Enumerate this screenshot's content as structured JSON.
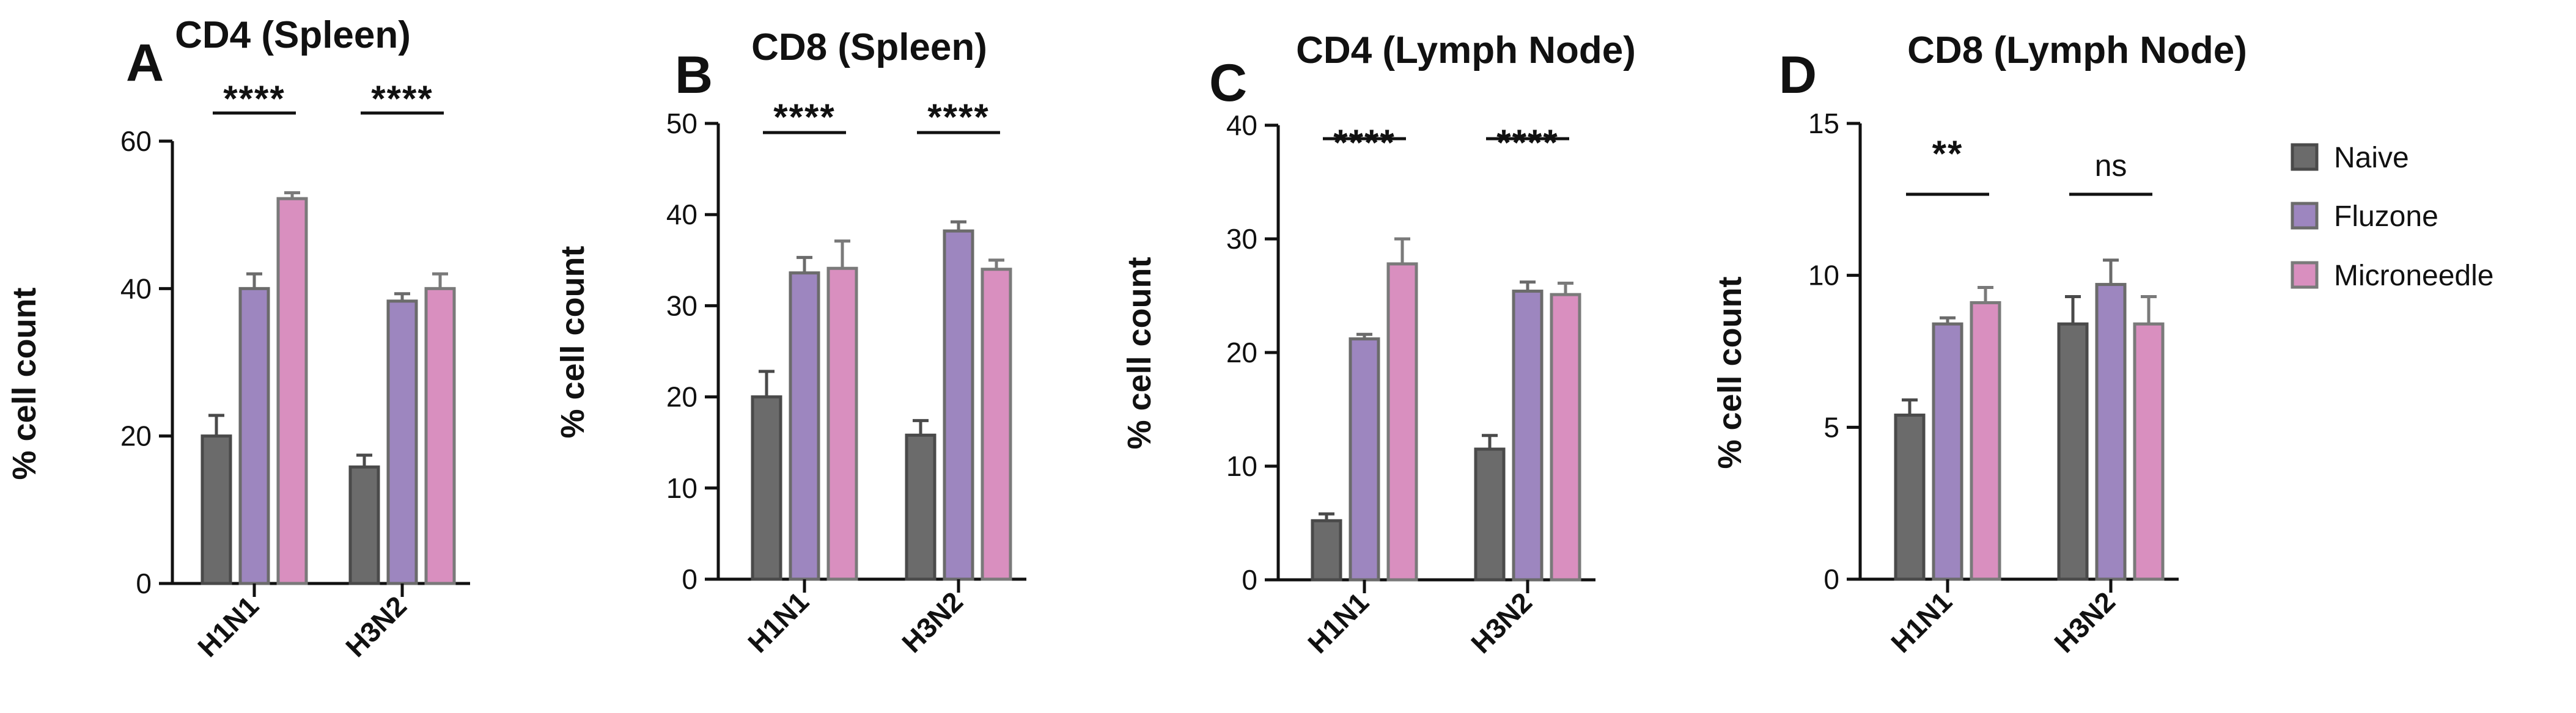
{
  "legend": [
    {
      "name": "Naive",
      "fill": "#6b6b6b",
      "stroke": "#4a4a4a"
    },
    {
      "name": "Fluzone",
      "fill": "#9d86bf",
      "stroke": "#6b6b6b"
    },
    {
      "name": "Microneedle",
      "fill": "#d98fbf",
      "stroke": "#7a7a7a"
    }
  ],
  "chart_data": [
    {
      "type": "bar",
      "panel": "A",
      "title": "CD4 (Spleen)",
      "ylabel": "% cell count",
      "ylim": [
        0,
        60
      ],
      "yticks": [
        0,
        20,
        40,
        60
      ],
      "categories": [
        "H1N1",
        "H3N2"
      ],
      "series": [
        {
          "name": "Naive",
          "values": [
            20,
            15.8
          ],
          "errors": [
            2.8,
            1.6
          ]
        },
        {
          "name": "Fluzone",
          "values": [
            40,
            38.3
          ],
          "errors": [
            2,
            1
          ]
        },
        {
          "name": "Microneedle",
          "values": [
            52.2,
            40
          ],
          "errors": [
            0.8,
            2
          ]
        }
      ],
      "significance": [
        "****",
        "****"
      ]
    },
    {
      "type": "bar",
      "panel": "B",
      "title": "CD8 (Spleen)",
      "ylabel": "% cell count",
      "ylim": [
        0,
        50
      ],
      "yticks": [
        0,
        10,
        20,
        30,
        40,
        50
      ],
      "categories": [
        "H1N1",
        "H3N2"
      ],
      "series": [
        {
          "name": "Naive",
          "values": [
            20,
            15.8
          ],
          "errors": [
            2.8,
            1.6
          ]
        },
        {
          "name": "Fluzone",
          "values": [
            33.6,
            38.2
          ],
          "errors": [
            1.7,
            1
          ]
        },
        {
          "name": "Microneedle",
          "values": [
            34.1,
            34
          ],
          "errors": [
            3,
            1
          ]
        }
      ],
      "significance": [
        "****",
        "****"
      ]
    },
    {
      "type": "bar",
      "panel": "C",
      "title": "CD4 (Lymph Node)",
      "ylabel": "% cell count",
      "ylim": [
        0,
        40
      ],
      "yticks": [
        0,
        10,
        20,
        30,
        40
      ],
      "categories": [
        "H1N1",
        "H3N2"
      ],
      "series": [
        {
          "name": "Naive",
          "values": [
            5.2,
            11.5
          ],
          "errors": [
            0.6,
            1.2
          ]
        },
        {
          "name": "Fluzone",
          "values": [
            21.2,
            25.4
          ],
          "errors": [
            0.4,
            0.8
          ]
        },
        {
          "name": "Microneedle",
          "values": [
            27.8,
            25.1
          ],
          "errors": [
            2.2,
            1
          ]
        }
      ],
      "significance": [
        "****",
        "****"
      ]
    },
    {
      "type": "bar",
      "panel": "D",
      "title": "CD8 (Lymph Node)",
      "ylabel": "% cell count",
      "ylim": [
        0,
        15
      ],
      "yticks": [
        0,
        5,
        10,
        15
      ],
      "categories": [
        "H1N1",
        "H3N2"
      ],
      "series": [
        {
          "name": "Naive",
          "values": [
            5.4,
            8.4
          ],
          "errors": [
            0.5,
            0.9
          ]
        },
        {
          "name": "Fluzone",
          "values": [
            8.4,
            9.7
          ],
          "errors": [
            0.2,
            0.8
          ]
        },
        {
          "name": "Microneedle",
          "values": [
            9.1,
            8.4
          ],
          "errors": [
            0.5,
            0.9
          ]
        }
      ],
      "significance": [
        "**",
        "ns"
      ]
    }
  ]
}
